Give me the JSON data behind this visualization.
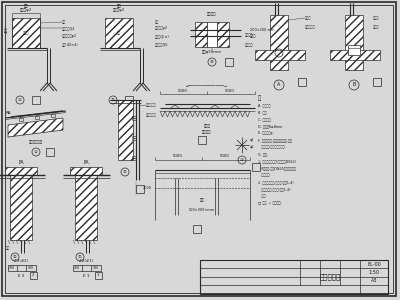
{
  "bg_color": "#d8d8d8",
  "paper_color": "#e8e8e0",
  "line_color": "#2a2a2a",
  "title": "防雷大样图",
  "drawing_no": "EL-00",
  "scale": "1:50",
  "sheet": "A3"
}
